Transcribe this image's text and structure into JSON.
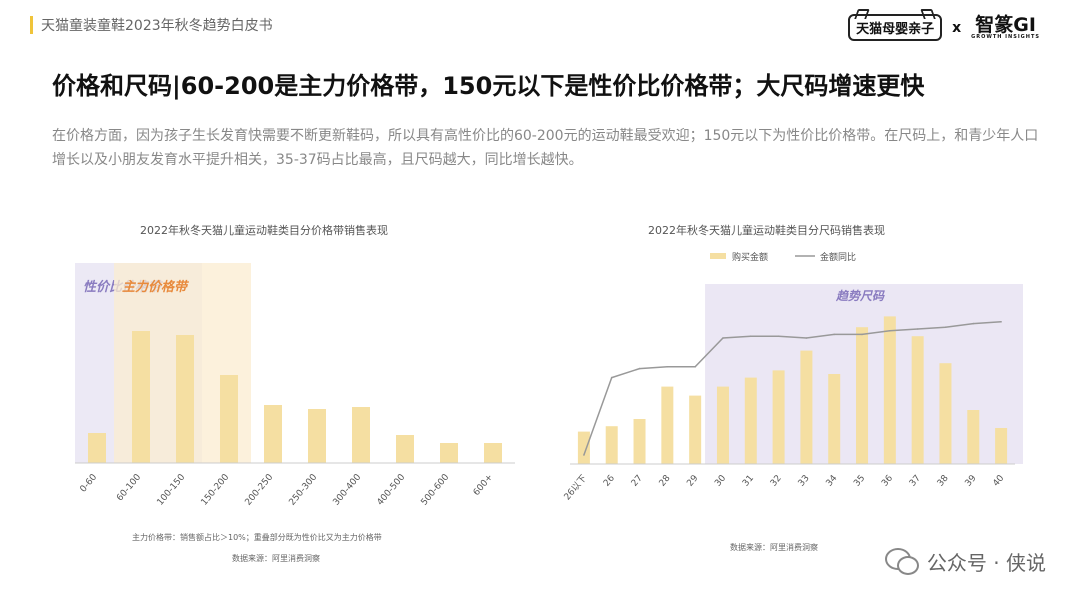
{
  "header": {
    "breadcrumb": "天猫童装童鞋2023年秋冬趋势白皮书",
    "logo_left": "天猫母婴亲子",
    "logo_x": "x",
    "logo_right": "智篆GI",
    "logo_right_sub": "GROWTH INSIGHTS"
  },
  "page": {
    "title": "价格和尺码|60-200是主力价格带，150元以下是性价比价格带；大尺码增速更快",
    "description": "在价格方面，因为孩子生长发育快需要不断更新鞋码，所以具有高性价比的60-200元的运动鞋最受欢迎；150元以下为性价比价格带。在尺码上，和青少年人口增长以及小朋友发育水平提升相关，35-37码占比最高，且尺码越大，同比增长越快。"
  },
  "chart_data": [
    {
      "type": "bar",
      "title": "2022年秋冬天猫儿童运动鞋类目分价格带销售表现",
      "categories": [
        "0-60",
        "60-100",
        "100-150",
        "150-200",
        "200-250",
        "250-300",
        "300-400",
        "400-500",
        "500-600",
        "600+"
      ],
      "values": [
        15,
        66,
        64,
        44,
        29,
        27,
        28,
        14,
        10,
        10
      ],
      "ylim": [
        0,
        100
      ],
      "grid": false,
      "highlights": [
        {
          "label": "性价比价格带",
          "from": "0-60",
          "to": "100-150",
          "color": "#e6e1f1"
        },
        {
          "label": "主力价格带",
          "from": "60-100",
          "to": "150-200",
          "color": "#fbecd0"
        }
      ],
      "highlight_label_colors": {
        "性价比价格带": "#8a7cc0",
        "主力价格带": "#e88a3c"
      },
      "bar_color": "#f5dfa2",
      "note": "主力价格带：销售额占比＞10%；重叠部分既为性价比又为主力价格带",
      "source": "数据来源：阿里消费洞察"
    },
    {
      "type": "bar",
      "title": "2022年秋冬天猫儿童运动鞋类目分尺码销售表现",
      "categories": [
        "26以下",
        "26",
        "27",
        "28",
        "29",
        "30",
        "31",
        "32",
        "33",
        "34",
        "35",
        "36",
        "37",
        "38",
        "39",
        "40"
      ],
      "series": [
        {
          "name": "购买金额",
          "type": "bar",
          "values": [
            18,
            21,
            25,
            43,
            38,
            43,
            48,
            52,
            63,
            50,
            76,
            82,
            71,
            56,
            30,
            20
          ],
          "color": "#f5dfa2"
        },
        {
          "name": "金额同比",
          "type": "line",
          "values": [
            5,
            48,
            53,
            54,
            54,
            70,
            71,
            71,
            70,
            72,
            72,
            74,
            75,
            76,
            78,
            79
          ],
          "color": "#999999"
        }
      ],
      "ylim": [
        0,
        100
      ],
      "grid": false,
      "legend": "top-center",
      "highlights": [
        {
          "label": "趋势尺码",
          "from": "30",
          "to": "40",
          "color": "#e6e1f1"
        }
      ],
      "highlight_label_colors": {
        "趋势尺码": "#8a7cc0"
      },
      "source": "数据来源：阿里消费洞察"
    }
  ],
  "watermark": {
    "text": "公众号 · 侠说"
  }
}
